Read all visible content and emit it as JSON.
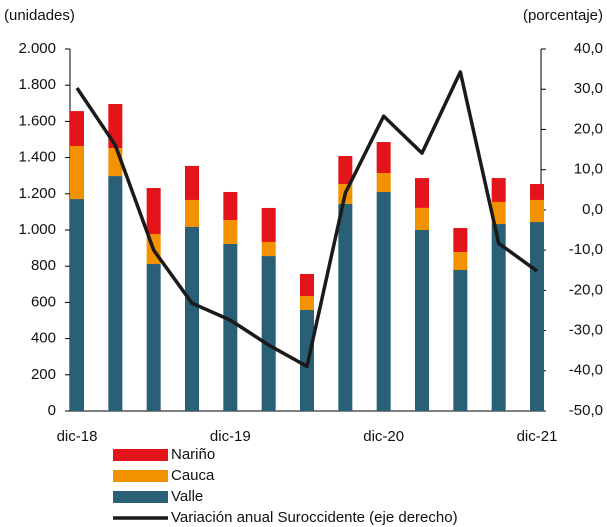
{
  "chart_data": {
    "type": "bar",
    "y_label": "(unidades)",
    "y2_label": "(porcentaje)",
    "categories": [
      "dic-18",
      null,
      null,
      null,
      "dic-19",
      null,
      null,
      null,
      "dic-20",
      null,
      null,
      null,
      "dic-21"
    ],
    "stacked": true,
    "series": [
      {
        "name": "Valle",
        "color": "#2a5f78",
        "values": [
          1171,
          1298,
          812,
          1017,
          923,
          856,
          558,
          1144,
          1210,
          1000,
          779,
          1033,
          1044
        ]
      },
      {
        "name": "Cauca",
        "color": "#f39200",
        "values": [
          293,
          155,
          166,
          149,
          132,
          78,
          77,
          110,
          105,
          122,
          99,
          122,
          122
        ]
      },
      {
        "name": "Nariño",
        "color": "#e3151a",
        "values": [
          193,
          243,
          254,
          188,
          155,
          188,
          122,
          155,
          171,
          165,
          133,
          132,
          88
        ]
      },
      {
        "name": "Variación anual Suroccidente (eje derecho)",
        "color": "#1a1a1a",
        "type": "line",
        "axis": "y2",
        "values": [
          30.3,
          16.1,
          -10,
          -23.2,
          -27.4,
          -33.6,
          -38.9,
          4.2,
          23.3,
          14.1,
          34.3,
          -8.3,
          -15.2
        ]
      }
    ],
    "ylim": [
      0,
      2000
    ],
    "yticks": [
      0,
      200,
      400,
      600,
      800,
      {
        "value": 1000,
        "label": "1.000"
      },
      {
        "value": 1200,
        "label": "1.200"
      },
      {
        "value": 1400,
        "label": "1.400"
      },
      {
        "value": 1600,
        "label": "1.600"
      },
      {
        "value": 1800,
        "label": "1.800"
      },
      {
        "value": 2000,
        "label": "2.000"
      }
    ],
    "y2lim": [
      -50,
      40
    ],
    "y2ticks": [
      {
        "value": -50,
        "label": "-50,0"
      },
      {
        "value": -40,
        "label": "-40,0"
      },
      {
        "value": -30,
        "label": "-30,0"
      },
      {
        "value": -20,
        "label": "-20,0"
      },
      {
        "value": -10,
        "label": "-10,0"
      },
      {
        "value": 0,
        "label": "0,0"
      },
      {
        "value": 10,
        "label": "10,0"
      },
      {
        "value": 20,
        "label": "20,0"
      },
      {
        "value": 30,
        "label": "30,0"
      },
      {
        "value": 40,
        "label": "40,0"
      }
    ],
    "grid": false
  }
}
